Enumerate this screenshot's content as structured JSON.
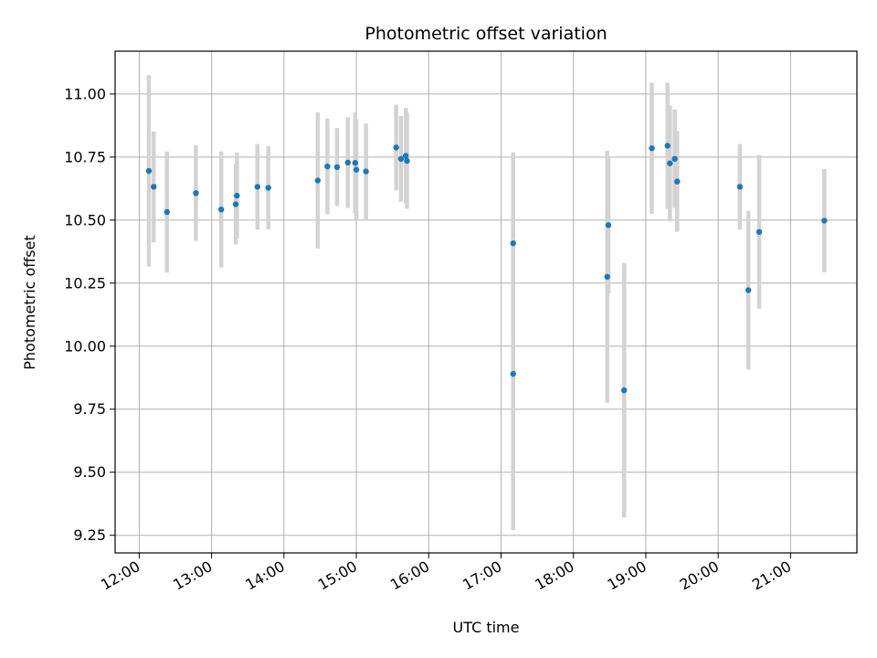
{
  "chart_data": {
    "type": "scatter",
    "title": "Photometric offset variation",
    "xlabel": "UTC time",
    "ylabel": "Photometric offset",
    "xlim": [
      "11:40",
      "21:55"
    ],
    "ylim": [
      9.18,
      11.17
    ],
    "x_ticks": [
      "12:00",
      "13:00",
      "14:00",
      "15:00",
      "16:00",
      "17:00",
      "18:00",
      "19:00",
      "20:00",
      "21:00"
    ],
    "y_ticks": [
      9.25,
      9.5,
      9.75,
      10.0,
      10.25,
      10.5,
      10.75,
      11.0
    ],
    "y_tick_labels": [
      "9.25",
      "9.50",
      "9.75",
      "10.00",
      "10.25",
      "10.50",
      "10.75",
      "11.00"
    ],
    "grid": true,
    "marker_color": "#1f77b4",
    "errorbar_color": "#d3d3d3",
    "points": [
      {
        "x": "12:08",
        "y": 10.695,
        "err": 0.38
      },
      {
        "x": "12:12",
        "y": 10.632,
        "err": 0.22
      },
      {
        "x": "12:23",
        "y": 10.532,
        "err": 0.24
      },
      {
        "x": "12:47",
        "y": 10.607,
        "err": 0.19
      },
      {
        "x": "13:08",
        "y": 10.542,
        "err": 0.23
      },
      {
        "x": "13:20",
        "y": 10.563,
        "err": 0.16
      },
      {
        "x": "13:21",
        "y": 10.597,
        "err": 0.17
      },
      {
        "x": "13:38",
        "y": 10.632,
        "err": 0.17
      },
      {
        "x": "13:47",
        "y": 10.628,
        "err": 0.165
      },
      {
        "x": "14:28",
        "y": 10.657,
        "err": 0.27
      },
      {
        "x": "14:36",
        "y": 10.713,
        "err": 0.19
      },
      {
        "x": "14:44",
        "y": 10.71,
        "err": 0.155
      },
      {
        "x": "14:53",
        "y": 10.728,
        "err": 0.18
      },
      {
        "x": "14:59",
        "y": 10.727,
        "err": 0.2
      },
      {
        "x": "15:00",
        "y": 10.7,
        "err": 0.2
      },
      {
        "x": "15:08",
        "y": 10.693,
        "err": 0.19
      },
      {
        "x": "15:33",
        "y": 10.788,
        "err": 0.17
      },
      {
        "x": "15:37",
        "y": 10.743,
        "err": 0.17
      },
      {
        "x": "15:41",
        "y": 10.755,
        "err": 0.19
      },
      {
        "x": "15:42",
        "y": 10.735,
        "err": 0.19
      },
      {
        "x": "17:10",
        "y": 10.408,
        "err": 0.36
      },
      {
        "x": "17:10",
        "y": 9.89,
        "err": 0.62
      },
      {
        "x": "18:28",
        "y": 10.275,
        "err": 0.5
      },
      {
        "x": "18:29",
        "y": 10.48,
        "err": 0.27
      },
      {
        "x": "18:42",
        "y": 9.825,
        "err": 0.505
      },
      {
        "x": "19:05",
        "y": 10.785,
        "err": 0.26
      },
      {
        "x": "19:18",
        "y": 10.795,
        "err": 0.25
      },
      {
        "x": "19:20",
        "y": 10.725,
        "err": 0.23
      },
      {
        "x": "19:24",
        "y": 10.743,
        "err": 0.195
      },
      {
        "x": "19:26",
        "y": 10.653,
        "err": 0.2
      },
      {
        "x": "20:18",
        "y": 10.632,
        "err": 0.17
      },
      {
        "x": "20:25",
        "y": 10.222,
        "err": 0.315
      },
      {
        "x": "20:34",
        "y": 10.453,
        "err": 0.305
      },
      {
        "x": "21:28",
        "y": 10.498,
        "err": 0.205
      }
    ]
  }
}
